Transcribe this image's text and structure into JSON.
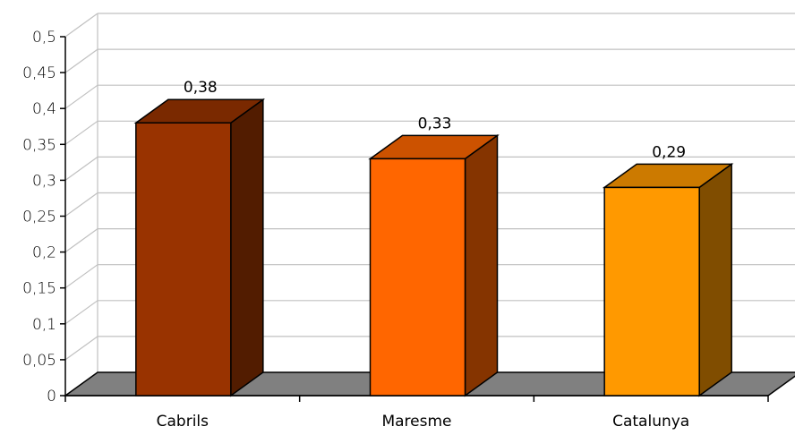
{
  "chart_data": {
    "type": "bar",
    "categories": [
      "Cabrils",
      "Maresme",
      "Catalunya"
    ],
    "values": [
      0.38,
      0.33,
      0.29
    ],
    "value_labels": [
      "0,38",
      "0,33",
      "0,29"
    ],
    "ylim": [
      0,
      0.5
    ],
    "yticks": [
      "0",
      "0,05",
      "0,1",
      "0,15",
      "0,2",
      "0,25",
      "0,3",
      "0,35",
      "0,4",
      "0,45",
      "0,5"
    ],
    "grid": true,
    "three_d": true,
    "colors": [
      {
        "front": "#993300",
        "top": "#7a2900",
        "side": "#521c00"
      },
      {
        "front": "#ff6600",
        "top": "#cc5200",
        "side": "#853400"
      },
      {
        "front": "#ff9900",
        "top": "#cc7a00",
        "side": "#804d00"
      }
    ],
    "floor_color": "#808080",
    "grid_color": "#c0c0c0"
  }
}
